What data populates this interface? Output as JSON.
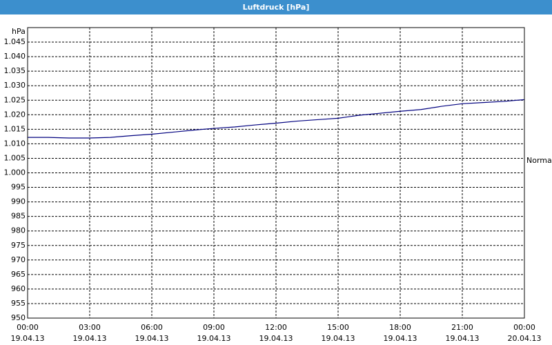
{
  "chart_data": {
    "type": "line",
    "title": "Luftdruck [hPa]",
    "y_label": "hPa",
    "annotation": "Normal",
    "x": [
      0,
      1,
      2,
      3,
      4,
      5,
      6,
      7,
      8,
      9,
      10,
      11,
      12,
      13,
      14,
      15,
      16,
      17,
      18,
      19,
      20,
      21,
      22,
      23,
      24
    ],
    "series": [
      {
        "color": "#00007f",
        "values": [
          1012.2,
          1012.2,
          1012.0,
          1012.0,
          1012.2,
          1012.8,
          1013.3,
          1014.0,
          1014.7,
          1015.3,
          1015.8,
          1016.5,
          1017.1,
          1017.8,
          1018.3,
          1018.8,
          1019.8,
          1020.5,
          1021.2,
          1021.8,
          1022.9,
          1023.8,
          1024.2,
          1024.6,
          1025.2
        ]
      }
    ],
    "xlim": [
      0,
      24
    ],
    "xticks": [
      {
        "value": 0,
        "label": "00:00"
      },
      {
        "value": 3,
        "label": "03:00"
      },
      {
        "value": 6,
        "label": "06:00"
      },
      {
        "value": 9,
        "label": "09:00"
      },
      {
        "value": 12,
        "label": "12:00"
      },
      {
        "value": 15,
        "label": "15:00"
      },
      {
        "value": 18,
        "label": "18:00"
      },
      {
        "value": 21,
        "label": "21:00"
      },
      {
        "value": 24,
        "label": "00:00"
      }
    ],
    "xtick_dates": [
      "19.04.13",
      "19.04.13",
      "19.04.13",
      "19.04.13",
      "19.04.13",
      "19.04.13",
      "19.04.13",
      "19.04.13",
      "20.04.13"
    ],
    "ylim": [
      950,
      1050
    ],
    "yticks": [
      950,
      955,
      960,
      965,
      970,
      975,
      980,
      985,
      990,
      995,
      {
        "value": 1000,
        "label": "1.000"
      },
      {
        "value": 1005,
        "label": "1.005"
      },
      {
        "value": 1010,
        "label": "1.010"
      },
      {
        "value": 1015,
        "label": "1.015"
      },
      {
        "value": 1020,
        "label": "1.020"
      },
      {
        "value": 1025,
        "label": "1.025"
      },
      {
        "value": 1030,
        "label": "1.030"
      },
      {
        "value": 1035,
        "label": "1.035"
      },
      {
        "value": 1040,
        "label": "1.040"
      },
      {
        "value": 1045,
        "label": "1.045"
      }
    ],
    "grid": true
  }
}
